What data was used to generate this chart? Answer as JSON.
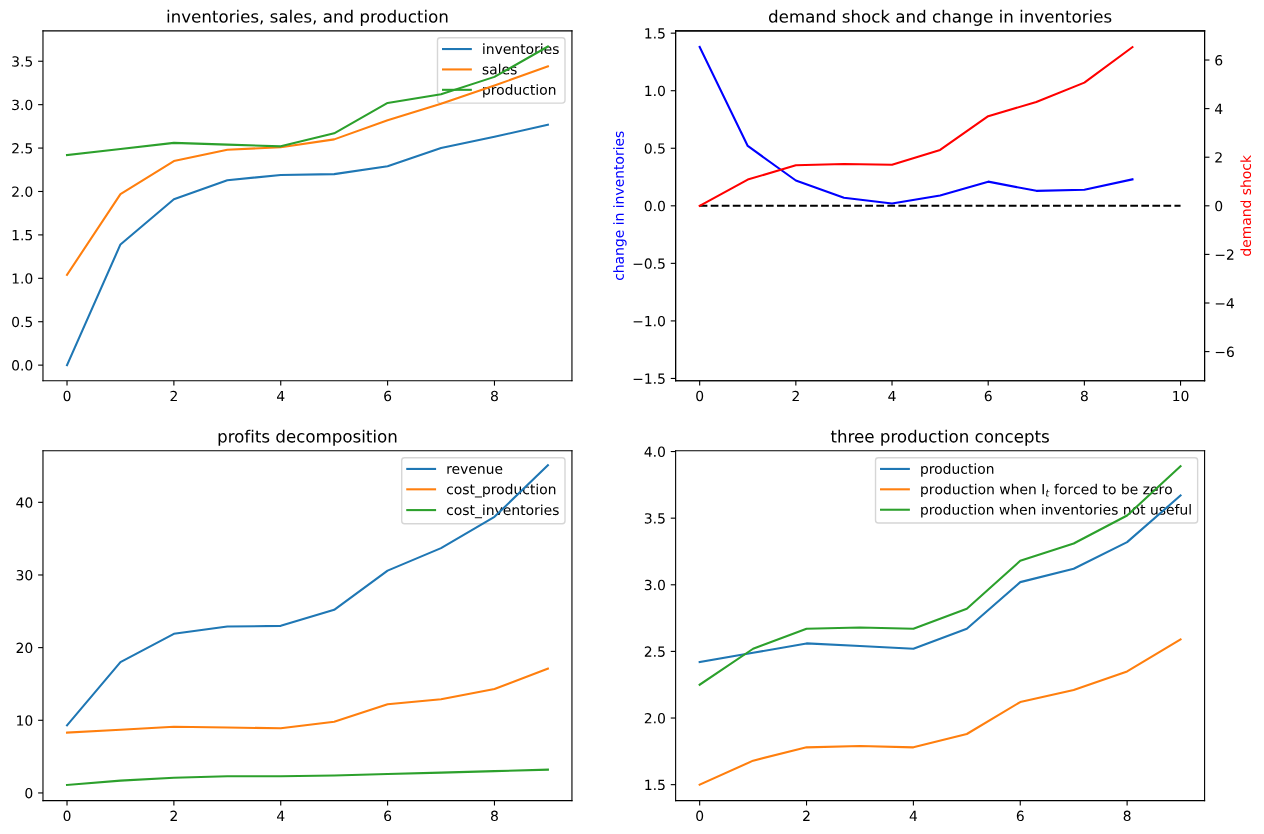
{
  "chart_data": [
    {
      "type": "line",
      "title": "inventories, sales, and production",
      "x": [
        0,
        1,
        2,
        3,
        4,
        5,
        6,
        7,
        8,
        9
      ],
      "xlim": [
        -0.45,
        9.45
      ],
      "xticks": [
        0,
        2,
        4,
        6,
        8
      ],
      "ylim": [
        -0.18,
        3.85
      ],
      "yticks": [
        {
          "value": 0,
          "label": "0.0"
        },
        0.5,
        {
          "value": 1,
          "label": "1.0"
        },
        1.5,
        {
          "value": 2,
          "label": "2.0"
        },
        2.5,
        {
          "value": 3,
          "label": "3.0"
        },
        3.5
      ],
      "legend": "top right",
      "series": [
        {
          "name": "inventories",
          "color": "#1f77b4",
          "values": [
            0,
            1.39,
            1.91,
            2.13,
            2.19,
            2.2,
            2.29,
            2.5,
            2.63,
            2.77
          ]
        },
        {
          "name": "sales",
          "color": "#ff7f0e",
          "values": [
            1.04,
            1.97,
            2.35,
            2.48,
            2.51,
            2.6,
            2.82,
            3.01,
            3.22,
            3.44
          ]
        },
        {
          "name": "production",
          "color": "#2ca02c",
          "values": [
            2.42,
            2.49,
            2.56,
            2.54,
            2.52,
            2.67,
            3.02,
            3.12,
            3.32,
            3.67
          ]
        }
      ]
    },
    {
      "type": "line",
      "title": "demand shock and change in inventories",
      "ylabel": "change in inventories",
      "y2label": "demand shock",
      "x": [
        0,
        1,
        2,
        3,
        4,
        5,
        6,
        7,
        8,
        9
      ],
      "xlim": [
        -0.5,
        10.5
      ],
      "xticks": [
        0,
        2,
        4,
        6,
        8,
        10
      ],
      "ylim": [
        -1.52,
        1.52
      ],
      "yticks": [
        {
          "value": -1.5,
          "label": "−1.5"
        },
        {
          "value": -1.0,
          "label": "−1.0"
        },
        {
          "value": -0.5,
          "label": "−0.5"
        },
        {
          "value": 0,
          "label": "0.0"
        },
        0.5,
        {
          "value": 1,
          "label": "1.0"
        },
        1.5
      ],
      "y2lim": [
        -7.2,
        7.2
      ],
      "y2ticks": [
        {
          "value": -6,
          "label": "−6"
        },
        {
          "value": -4,
          "label": "−4"
        },
        {
          "value": -2,
          "label": "−2"
        },
        0,
        2,
        4,
        6
      ],
      "series": [
        {
          "color": "#0000ff",
          "values": [
            1.38,
            0.52,
            0.22,
            0.07,
            0.02,
            0.09,
            0.21,
            0.13,
            0.14,
            0.23
          ]
        },
        {
          "color": "#000000",
          "x": [
            0,
            10
          ],
          "values": [
            0,
            0
          ],
          "line_style": "dashed"
        },
        {
          "color": "#ff0000",
          "axis": "y2",
          "values": [
            0,
            1.08,
            1.67,
            1.72,
            1.69,
            2.3,
            3.69,
            4.27,
            5.07,
            6.53
          ]
        }
      ]
    },
    {
      "type": "line",
      "title": "profits decomposition",
      "x": [
        0,
        1,
        2,
        3,
        4,
        5,
        6,
        7,
        8,
        9
      ],
      "xlim": [
        -0.45,
        9.45
      ],
      "xticks": [
        0,
        2,
        4,
        6,
        8
      ],
      "ylim": [
        -1.06,
        47.1
      ],
      "yticks": [
        0,
        10,
        20,
        30,
        40
      ],
      "legend": "top right",
      "series": [
        {
          "name": "revenue",
          "color": "#1f77b4",
          "values": [
            9.3,
            18.0,
            21.9,
            22.9,
            23.0,
            25.2,
            30.6,
            33.7,
            38.0,
            45.1
          ]
        },
        {
          "name": "cost_production",
          "color": "#ff7f0e",
          "values": [
            8.3,
            8.7,
            9.1,
            9.0,
            8.9,
            9.8,
            12.2,
            12.9,
            14.3,
            17.1
          ]
        },
        {
          "name": "cost_inventories",
          "color": "#2ca02c",
          "values": [
            1.1,
            1.7,
            2.1,
            2.3,
            2.3,
            2.4,
            2.6,
            2.8,
            3.0,
            3.2
          ]
        }
      ]
    },
    {
      "type": "line",
      "title": "three production concepts",
      "x": [
        0,
        1,
        2,
        3,
        4,
        5,
        6,
        7,
        8,
        9
      ],
      "xlim": [
        -0.45,
        9.45
      ],
      "xticks": [
        0,
        2,
        4,
        6,
        8
      ],
      "ylim": [
        1.38,
        4.006
      ],
      "yticks": [
        1.5,
        {
          "value": 2,
          "label": "2.0"
        },
        2.5,
        {
          "value": 3,
          "label": "3.0"
        },
        3.5,
        {
          "value": 4,
          "label": "4.0"
        }
      ],
      "legend": "top right",
      "series": [
        {
          "name": "production",
          "color": "#1f77b4",
          "values": [
            2.42,
            2.49,
            2.56,
            2.54,
            2.52,
            2.67,
            3.02,
            3.12,
            3.32,
            3.67
          ]
        },
        {
          "name": "production when I$_{t}$ forced to be zero",
          "color": "#ff7f0e",
          "values": [
            1.5,
            1.68,
            1.78,
            1.79,
            1.78,
            1.88,
            2.12,
            2.21,
            2.35,
            2.59
          ]
        },
        {
          "name": "production when inventories not useful",
          "color": "#2ca02c",
          "values": [
            2.25,
            2.52,
            2.67,
            2.68,
            2.67,
            2.82,
            3.18,
            3.31,
            3.52,
            3.89
          ]
        }
      ]
    }
  ]
}
